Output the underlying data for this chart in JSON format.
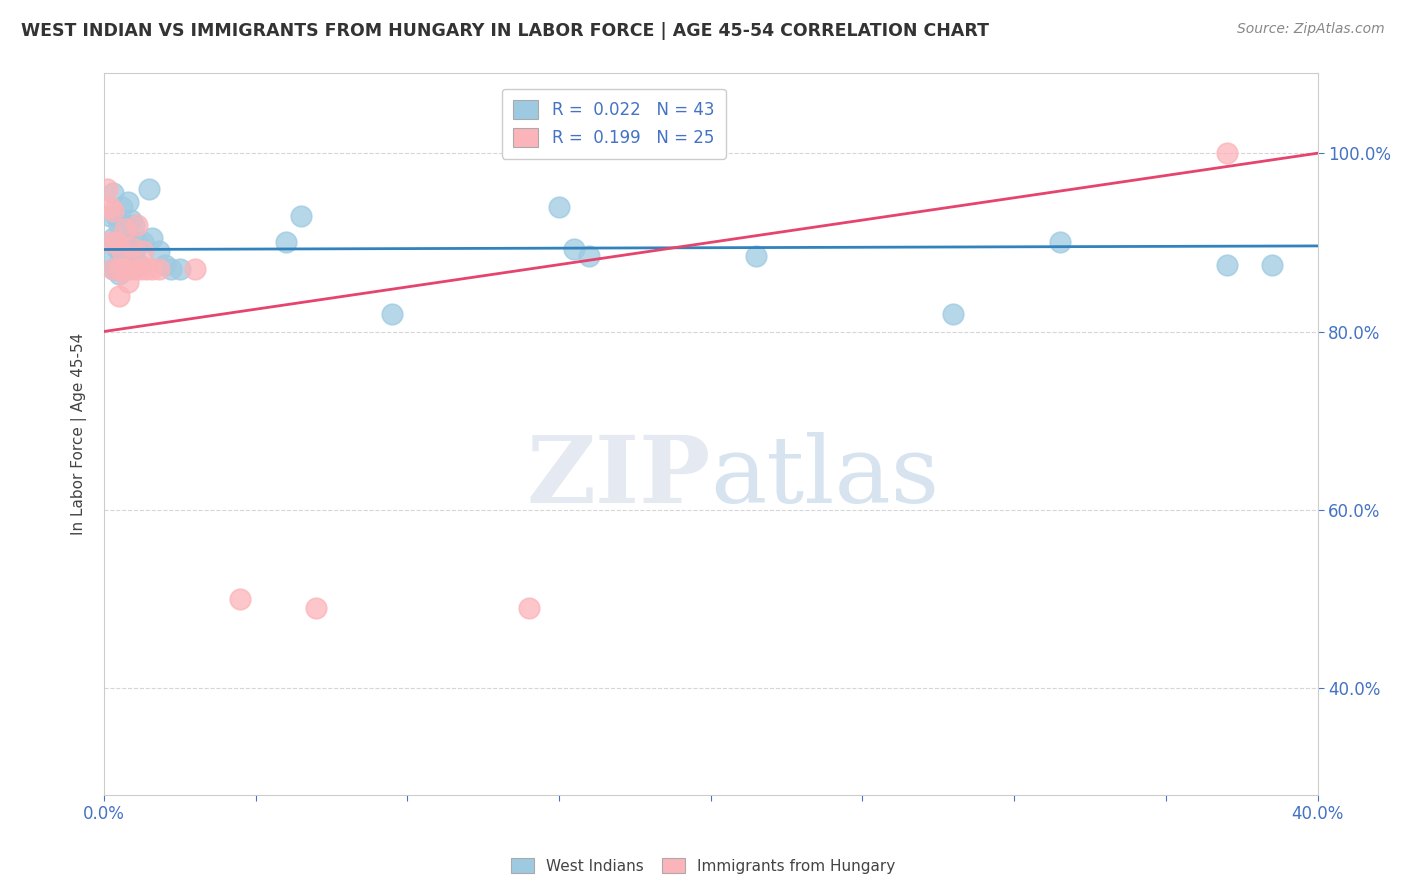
{
  "title": "WEST INDIAN VS IMMIGRANTS FROM HUNGARY IN LABOR FORCE | AGE 45-54 CORRELATION CHART",
  "source": "Source: ZipAtlas.com",
  "ylabel": "In Labor Force | Age 45-54",
  "west_indian_R": 0.022,
  "west_indian_N": 43,
  "hungary_R": 0.199,
  "hungary_N": 25,
  "west_indian_color": "#9ecae1",
  "hungary_color": "#fbb4b9",
  "west_indian_line_color": "#3182bd",
  "hungary_line_color": "#e5446d",
  "background_color": "#ffffff",
  "grid_color": "#cccccc",
  "xlim": [
    0.0,
    0.4
  ],
  "ylim": [
    0.28,
    1.09
  ],
  "wi_x": [
    0.002,
    0.002,
    0.003,
    0.003,
    0.003,
    0.004,
    0.004,
    0.004,
    0.005,
    0.005,
    0.005,
    0.006,
    0.006,
    0.006,
    0.007,
    0.007,
    0.008,
    0.008,
    0.008,
    0.009,
    0.009,
    0.01,
    0.01,
    0.011,
    0.012,
    0.013,
    0.015,
    0.016,
    0.018,
    0.02,
    0.022,
    0.025,
    0.06,
    0.065,
    0.095,
    0.15,
    0.155,
    0.16,
    0.215,
    0.28,
    0.315,
    0.37,
    0.385
  ],
  "wi_y": [
    0.93,
    0.88,
    0.955,
    0.905,
    0.87,
    0.93,
    0.895,
    0.87,
    0.92,
    0.89,
    0.865,
    0.94,
    0.9,
    0.875,
    0.92,
    0.89,
    0.945,
    0.905,
    0.87,
    0.925,
    0.885,
    0.92,
    0.888,
    0.9,
    0.875,
    0.9,
    0.96,
    0.905,
    0.89,
    0.875,
    0.87,
    0.87,
    0.9,
    0.93,
    0.82,
    0.94,
    0.892,
    0.885,
    0.885,
    0.82,
    0.9,
    0.875,
    0.875
  ],
  "hu_x": [
    0.001,
    0.002,
    0.002,
    0.003,
    0.003,
    0.004,
    0.005,
    0.005,
    0.006,
    0.007,
    0.007,
    0.008,
    0.009,
    0.01,
    0.011,
    0.012,
    0.013,
    0.014,
    0.016,
    0.018,
    0.03,
    0.045,
    0.07,
    0.14,
    0.37
  ],
  "hu_y": [
    0.96,
    0.94,
    0.9,
    0.935,
    0.87,
    0.9,
    0.87,
    0.84,
    0.89,
    0.915,
    0.87,
    0.855,
    0.895,
    0.87,
    0.92,
    0.87,
    0.89,
    0.87,
    0.87,
    0.87,
    0.87,
    0.5,
    0.49,
    0.49,
    1.0
  ],
  "wi_line_x": [
    0.0,
    0.4
  ],
  "wi_line_y": [
    0.892,
    0.896
  ],
  "hu_line_x": [
    0.0,
    0.4
  ],
  "hu_line_y": [
    0.8,
    1.0
  ]
}
